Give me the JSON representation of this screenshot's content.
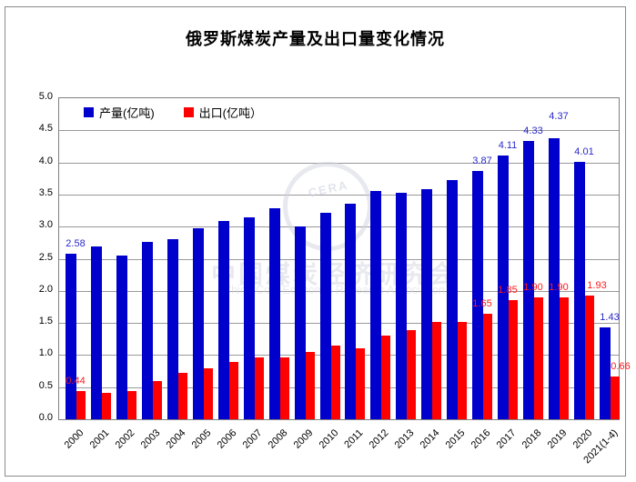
{
  "window": {
    "background": "#ffffff",
    "frame_border_color": "#8a8a8a",
    "plot_border_color": "#808080",
    "grid_color": "#999999"
  },
  "chart_data": {
    "type": "bar",
    "title": "俄罗斯煤炭产量及出口量变化情况",
    "categories": [
      "2000",
      "2001",
      "2002",
      "2003",
      "2004",
      "2005",
      "2006",
      "2007",
      "2008",
      "2009",
      "2010",
      "2011",
      "2012",
      "2013",
      "2014",
      "2015",
      "2016",
      "2017",
      "2018",
      "2019",
      "2020",
      "2021(1-4)"
    ],
    "series": [
      {
        "name": "产量(亿吨)",
        "color": "#0000cc",
        "label_color": "#2929cc",
        "values": [
          2.58,
          2.69,
          2.55,
          2.76,
          2.81,
          2.98,
          3.09,
          3.14,
          3.28,
          3.0,
          3.22,
          3.35,
          3.56,
          3.52,
          3.58,
          3.73,
          3.87,
          4.11,
          4.33,
          4.37,
          4.01,
          1.43
        ]
      },
      {
        "name": "出口(亿吨）",
        "color": "#ff0000",
        "label_color": "#ff1a1a",
        "values": [
          0.44,
          0.41,
          0.44,
          0.6,
          0.72,
          0.8,
          0.89,
          0.97,
          0.97,
          1.05,
          1.15,
          1.1,
          1.3,
          1.39,
          1.52,
          1.52,
          1.65,
          1.85,
          1.9,
          1.9,
          1.93,
          0.66
        ]
      }
    ],
    "labeled_indices": [
      0,
      16,
      17,
      18,
      19,
      20,
      21
    ],
    "data_labels_shown": {
      "产量(亿吨)": [
        "2.58",
        "3.87",
        "4.11",
        "4.33",
        "4.37",
        "4.01",
        "1.43"
      ],
      "出口(亿吨）": [
        "0.44",
        "1.65",
        "1.85",
        "1.90",
        "1.90",
        "1.93",
        "0.66"
      ]
    },
    "ylim": [
      0,
      5
    ],
    "ytick_step": 0.5,
    "ytick_labels": [
      "5.0",
      "4.5",
      "4.0",
      "3.5",
      "3.0",
      "2.5",
      "2.0",
      "1.5",
      "1.0",
      "0.5",
      "0.0"
    ],
    "grid": true,
    "legend_position": "top-left-inside",
    "watermark": {
      "logo": "CERA",
      "line1": "中国煤炭经济研究会",
      "line2": "China Coal Economic Research Association"
    }
  }
}
